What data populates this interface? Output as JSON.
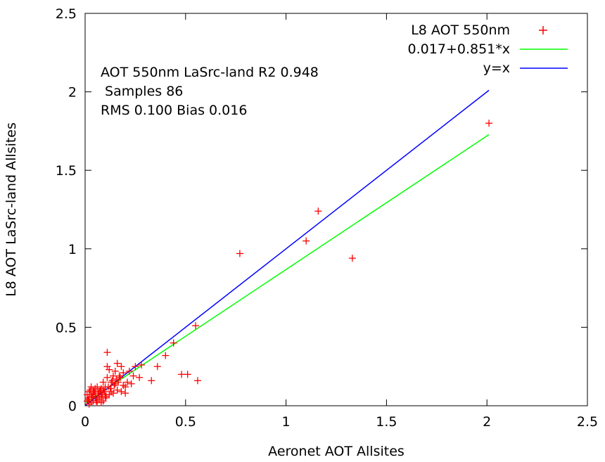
{
  "chart_data": {
    "type": "scatter",
    "xlabel": "Aeronet AOT Allsites",
    "ylabel": "L8 AOT LaSrc-land Allsites",
    "xlim": [
      0,
      2.5
    ],
    "ylim": [
      0,
      2.5
    ],
    "xticks": [
      "0",
      "0.5",
      "1",
      "1.5",
      "2",
      "2.5"
    ],
    "yticks": [
      "0",
      "0.5",
      "1",
      "1.5",
      "2",
      "2.5"
    ],
    "grid": false,
    "legend_position": "top-right",
    "annotations": [
      "AOT 550nm LaSrc-land R2 0.948",
      " Samples 86",
      "RMS 0.100 Bias 0.016"
    ],
    "series": [
      {
        "name": "L8 AOT 550nm",
        "kind": "points",
        "color": "#ff0000",
        "points": [
          [
            2.01,
            1.8
          ],
          [
            1.16,
            1.24
          ],
          [
            1.1,
            1.05
          ],
          [
            1.33,
            0.94
          ],
          [
            0.77,
            0.97
          ],
          [
            0.55,
            0.51
          ],
          [
            0.44,
            0.4
          ],
          [
            0.4,
            0.32
          ],
          [
            0.36,
            0.25
          ],
          [
            0.33,
            0.16
          ],
          [
            0.48,
            0.2
          ],
          [
            0.51,
            0.2
          ],
          [
            0.56,
            0.16
          ],
          [
            0.28,
            0.26
          ],
          [
            0.27,
            0.18
          ],
          [
            0.25,
            0.25
          ],
          [
            0.24,
            0.19
          ],
          [
            0.23,
            0.14
          ],
          [
            0.22,
            0.22
          ],
          [
            0.21,
            0.15
          ],
          [
            0.2,
            0.12
          ],
          [
            0.19,
            0.21
          ],
          [
            0.19,
            0.13
          ],
          [
            0.18,
            0.25
          ],
          [
            0.17,
            0.19
          ],
          [
            0.16,
            0.27
          ],
          [
            0.15,
            0.22
          ],
          [
            0.15,
            0.14
          ],
          [
            0.14,
            0.19
          ],
          [
            0.13,
            0.15
          ],
          [
            0.13,
            0.09
          ],
          [
            0.12,
            0.23
          ],
          [
            0.11,
            0.34
          ],
          [
            0.11,
            0.25
          ],
          [
            0.11,
            0.18
          ],
          [
            0.1,
            0.12
          ],
          [
            0.1,
            0.07
          ],
          [
            0.09,
            0.15
          ],
          [
            0.09,
            0.1
          ],
          [
            0.08,
            0.06
          ],
          [
            0.08,
            0.11
          ],
          [
            0.07,
            0.04
          ],
          [
            0.07,
            0.09
          ],
          [
            0.06,
            0.12
          ],
          [
            0.06,
            0.02
          ],
          [
            0.05,
            0.08
          ],
          [
            0.05,
            0.05
          ],
          [
            0.04,
            0.1
          ],
          [
            0.04,
            0.03
          ],
          [
            0.03,
            0.12
          ],
          [
            0.03,
            0.07
          ],
          [
            0.02,
            0.05
          ],
          [
            0.02,
            0.09
          ],
          [
            0.01,
            0.03
          ],
          [
            0.01,
            0.07
          ],
          [
            0.2,
            0.08
          ],
          [
            0.18,
            0.09
          ],
          [
            0.16,
            0.1
          ],
          [
            0.14,
            0.08
          ],
          [
            0.12,
            0.07
          ],
          [
            0.1,
            0.05
          ],
          [
            0.09,
            0.03
          ],
          [
            0.08,
            0.02
          ],
          [
            0.07,
            0.06
          ],
          [
            0.06,
            0.05
          ],
          [
            0.05,
            0.11
          ],
          [
            0.04,
            0.07
          ],
          [
            0.03,
            0.02
          ],
          [
            0.02,
            0.01
          ],
          [
            0.015,
            0.04
          ],
          [
            0.025,
            0.1
          ],
          [
            0.035,
            0.06
          ],
          [
            0.045,
            0.09
          ],
          [
            0.055,
            0.03
          ],
          [
            0.065,
            0.08
          ],
          [
            0.075,
            0.1
          ],
          [
            0.085,
            0.07
          ],
          [
            0.095,
            0.09
          ],
          [
            0.105,
            0.06
          ],
          [
            0.115,
            0.12
          ],
          [
            0.125,
            0.11
          ],
          [
            0.135,
            0.16
          ],
          [
            0.145,
            0.13
          ],
          [
            0.155,
            0.17
          ],
          [
            0.165,
            0.15
          ],
          [
            0.175,
            0.18
          ]
        ]
      },
      {
        "name": "0.017+0.851*x",
        "kind": "line",
        "color": "#00ff00",
        "intercept": 0.017,
        "slope": 0.851,
        "x_range": [
          0,
          2.01
        ]
      },
      {
        "name": "y=x",
        "kind": "line",
        "color": "#0000ff",
        "intercept": 0,
        "slope": 1,
        "x_range": [
          0,
          2.01
        ]
      }
    ]
  }
}
